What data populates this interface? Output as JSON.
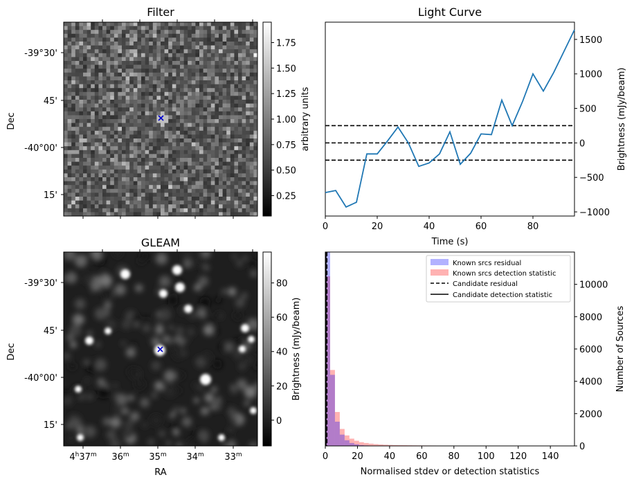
{
  "chart_data": [
    {
      "type": "heatmap",
      "title": "Filter",
      "ylabel": "Dec",
      "ytick_labels": [
        "-39°30'",
        "45'",
        "-40°00'",
        "15'"
      ],
      "colorbar": {
        "label": "arbitrary units",
        "range": [
          0.05,
          1.95
        ],
        "ticks": [
          0.25,
          0.5,
          0.75,
          1.0,
          1.25,
          1.5,
          1.75
        ],
        "tick_labels": [
          "0.25",
          "0.50",
          "0.75",
          "1.00",
          "1.25",
          "1.50",
          "1.75"
        ],
        "colormap": "gray"
      },
      "marker": {
        "symbol": "x",
        "color": "#0000cc"
      }
    },
    {
      "type": "line",
      "title": "Light Curve",
      "xlabel": "Time (s)",
      "ylabel": "Brightness (mJy/beam)",
      "xlim": [
        0,
        96
      ],
      "ylim": [
        -1060,
        1750
      ],
      "xticks": [
        0,
        20,
        40,
        60,
        80
      ],
      "yticks": [
        -1000,
        -500,
        0,
        500,
        1000,
        1500
      ],
      "ytick_labels": [
        "−1000",
        "−500",
        "0",
        "500",
        "1000",
        "1500"
      ],
      "x": [
        0,
        4,
        8,
        12,
        16,
        20,
        24,
        28,
        32,
        36,
        40,
        44,
        48,
        52,
        56,
        60,
        64,
        68,
        72,
        76,
        80,
        84,
        88,
        92,
        96
      ],
      "y": [
        -720,
        -690,
        -930,
        -860,
        -160,
        -160,
        30,
        230,
        0,
        -340,
        -290,
        -160,
        160,
        -310,
        -150,
        130,
        120,
        620,
        250,
        600,
        1000,
        750,
        1020,
        1330,
        1640
      ],
      "color": "#1f77b4",
      "hlines": [
        250,
        0,
        -250
      ],
      "hline_style": "dashed"
    },
    {
      "type": "heatmap",
      "title": "GLEAM",
      "xlabel": "RA",
      "ylabel": "Dec",
      "ytick_labels": [
        "-39°30'",
        "45'",
        "-40°00'",
        "15'"
      ],
      "xtick_labels": [
        {
          "main": "4",
          "sup1": "h",
          "mid": "37",
          "sup2": "m"
        },
        {
          "main": "36",
          "sup1": "m",
          "mid": "",
          "sup2": ""
        },
        {
          "main": "35",
          "sup1": "m",
          "mid": "",
          "sup2": ""
        },
        {
          "main": "34",
          "sup1": "m",
          "mid": "",
          "sup2": ""
        },
        {
          "main": "33",
          "sup1": "m",
          "mid": "",
          "sup2": ""
        }
      ],
      "colorbar": {
        "label": "Brightness (mJy/beam)",
        "range": [
          -15,
          98
        ],
        "ticks": [
          0,
          20,
          40,
          60,
          80
        ],
        "tick_labels": [
          "0",
          "20",
          "40",
          "60",
          "80"
        ],
        "colormap": "gray"
      },
      "marker": {
        "symbol": "x",
        "color": "#0000cc"
      }
    },
    {
      "type": "bar",
      "subtype": "histogram",
      "xlabel": "Normalised stdev or detection statistics",
      "ylabel": "Number of Sources",
      "xlim": [
        0,
        155
      ],
      "ylim": [
        0,
        12000
      ],
      "xticks": [
        0,
        20,
        40,
        60,
        80,
        100,
        120,
        140
      ],
      "yticks": [
        0,
        2000,
        4000,
        6000,
        8000,
        10000
      ],
      "bin_width": 3,
      "legend_position": "top-right",
      "series": [
        {
          "name": "Known srcs residual",
          "color": "#0000ff",
          "alpha": 0.3,
          "bins_start": [
            0,
            3,
            6,
            9,
            12,
            15,
            18,
            21,
            24,
            27,
            30
          ],
          "values": [
            12000,
            4400,
            1500,
            700,
            350,
            180,
            100,
            50,
            30,
            15,
            10
          ]
        },
        {
          "name": "Known srcs detection statistic",
          "color": "#ff0000",
          "alpha": 0.3,
          "bins_start": [
            0,
            3,
            6,
            9,
            12,
            15,
            18,
            21,
            24,
            27,
            30,
            33,
            36,
            39,
            42,
            45,
            48,
            51,
            54,
            57,
            60,
            63,
            66,
            69,
            72,
            75,
            78,
            81,
            84,
            87,
            90,
            93,
            96,
            99,
            102,
            105,
            108,
            111,
            114
          ],
          "values": [
            10500,
            4700,
            2100,
            1050,
            650,
            450,
            320,
            230,
            180,
            140,
            110,
            90,
            75,
            62,
            55,
            48,
            42,
            38,
            34,
            30,
            28,
            26,
            24,
            22,
            20,
            18,
            16,
            15,
            14,
            12,
            11,
            10,
            9,
            8,
            7,
            6,
            5,
            4,
            3
          ]
        }
      ],
      "vlines": [
        {
          "name": "Candidate residual",
          "x": 1.0,
          "style": "dashed",
          "color": "#000000"
        },
        {
          "name": "Candidate detection statistic",
          "x": 0.4,
          "style": "solid",
          "color": "#000000"
        }
      ]
    }
  ]
}
